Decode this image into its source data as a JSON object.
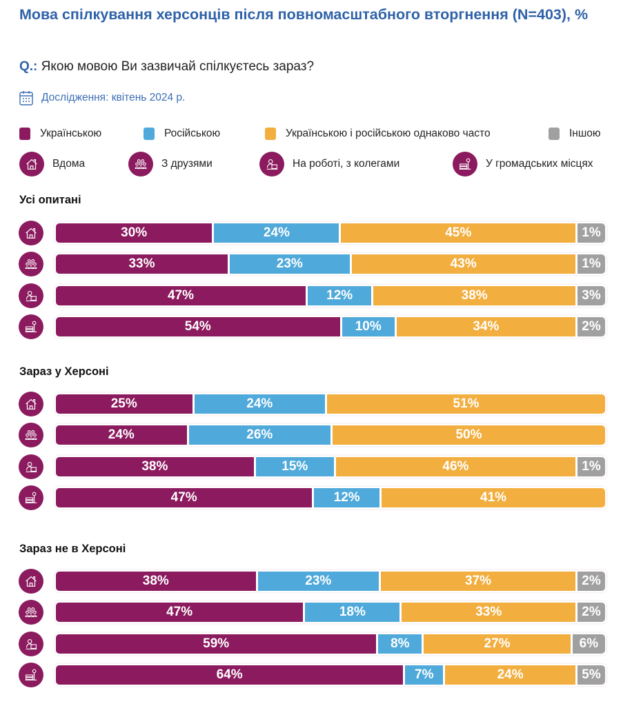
{
  "title": "Мова спілкування херсонців після повномасштабного вторгнення (N=403), %",
  "question": {
    "prefix": "Q.:",
    "text": " Якою мовою Ви зазвичай спілкуєтесь зараз?"
  },
  "study": {
    "icon": "calendar-icon",
    "text": "Дослідження: квітень 2024 р."
  },
  "colors": {
    "title": "#2F62A8",
    "ukrainian": "#8B1A5E",
    "russian": "#4FA9DA",
    "both": "#F2AE3F",
    "other": "#A0A0A0"
  },
  "legend": [
    {
      "label": "Українською",
      "color": "#8B1A5E"
    },
    {
      "label": "Російською",
      "color": "#4FA9DA"
    },
    {
      "label": "Українською і російською однаково часто",
      "color": "#F2AE3F"
    },
    {
      "label": "Іншою",
      "color": "#A0A0A0"
    }
  ],
  "contexts": [
    {
      "label": "Вдома",
      "icon": "home-icon"
    },
    {
      "label": "З друзями",
      "icon": "friends-icon"
    },
    {
      "label": "На роботі, з колегами",
      "icon": "work-icon"
    },
    {
      "label": "У громадських місцях",
      "icon": "public-places-icon"
    }
  ],
  "chart_data": {
    "type": "bar",
    "orientation": "horizontal-stacked-100",
    "series_names": [
      "Українською",
      "Російською",
      "Українською і російською однаково часто",
      "Іншою"
    ],
    "categories": [
      "Вдома",
      "З друзями",
      "На роботі, з колегами",
      "У громадських місцях"
    ],
    "groups": [
      {
        "name": "Усі опитані",
        "rows": [
          [
            30,
            24,
            45,
            1
          ],
          [
            33,
            23,
            43,
            1
          ],
          [
            47,
            12,
            38,
            3
          ],
          [
            54,
            10,
            34,
            2
          ]
        ]
      },
      {
        "name": "Зараз у Херсоні",
        "rows": [
          [
            25,
            24,
            51,
            0
          ],
          [
            24,
            26,
            50,
            0
          ],
          [
            38,
            15,
            46,
            1
          ],
          [
            47,
            12,
            41,
            0
          ]
        ]
      },
      {
        "name": "Зараз не в Херсоні",
        "rows": [
          [
            38,
            23,
            37,
            2
          ],
          [
            47,
            18,
            33,
            2
          ],
          [
            59,
            8,
            27,
            6
          ],
          [
            64,
            7,
            24,
            5
          ]
        ]
      }
    ],
    "value_suffix": "%"
  }
}
